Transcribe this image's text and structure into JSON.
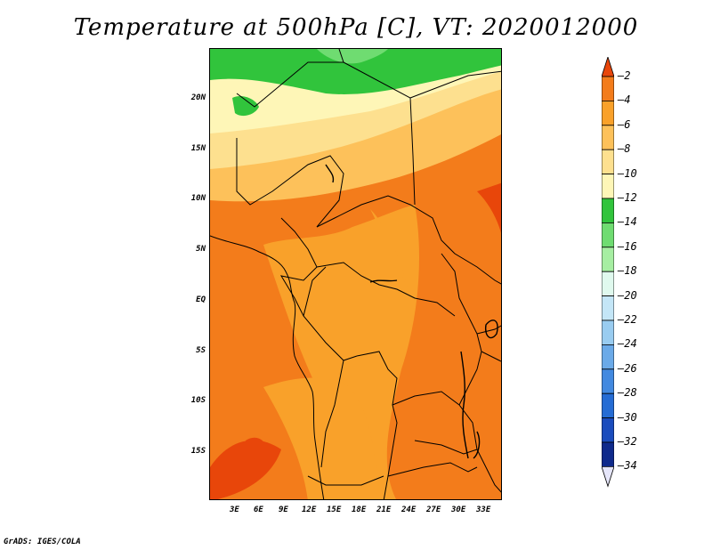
{
  "title": "Temperature at 500hPa [C], VT: 2020012000",
  "footer": "GrADS: IGES/COLA",
  "map": {
    "lat_labels": [
      "20N",
      "15N",
      "10N",
      "5N",
      "EQ",
      "5S",
      "10S",
      "15S"
    ],
    "lon_labels": [
      "3E",
      "6E",
      "9E",
      "12E",
      "15E",
      "18E",
      "21E",
      "24E",
      "27E",
      "30E",
      "33E"
    ]
  },
  "colorbar": {
    "labels": [
      "-2",
      "-4",
      "-6",
      "-8",
      "-10",
      "-12",
      "-14",
      "-16",
      "-18",
      "-20",
      "-22",
      "-24",
      "-26",
      "-28",
      "-30",
      "-32",
      "-34"
    ],
    "colors": [
      "#e8460a",
      "#f37c1b",
      "#f9a12a",
      "#fdc15a",
      "#fde08f",
      "#fef6b7",
      "#31c43c",
      "#6fdc71",
      "#a6eea2",
      "#e0f9ee",
      "#c4e6f7",
      "#99ccf0",
      "#6baae8",
      "#4289e0",
      "#256cd4",
      "#1a4cbd",
      "#0f2a8c",
      "#101464"
    ],
    "top_arrow_color": "#e8460a",
    "bottom_arrow_color": "#e6e6fa"
  }
}
